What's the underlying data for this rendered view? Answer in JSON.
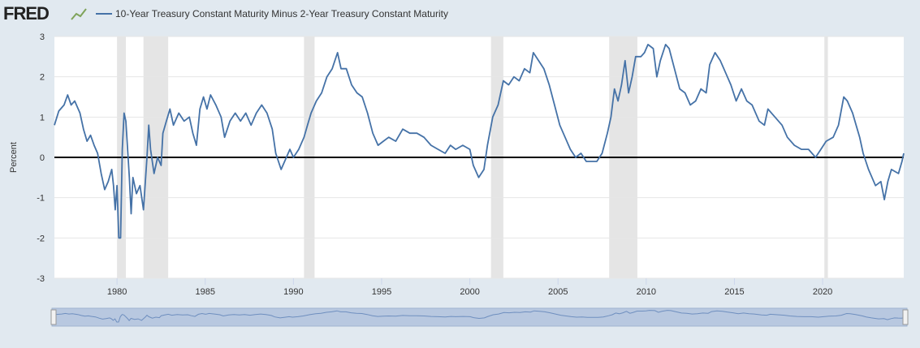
{
  "brand": "FRED",
  "chart_data": {
    "type": "line",
    "ylabel": "Percent",
    "x": [
      1976.45,
      1976.7,
      1977.0,
      1977.2,
      1977.4,
      1977.6,
      1977.9,
      1978.1,
      1978.3,
      1978.5,
      1978.7,
      1978.9,
      1979.1,
      1979.3,
      1979.5,
      1979.7,
      1979.8,
      1979.9,
      1980.0,
      1980.1,
      1980.2,
      1980.3,
      1980.4,
      1980.5,
      1980.7,
      1980.8,
      1980.9,
      1981.1,
      1981.3,
      1981.5,
      1981.7,
      1981.8,
      1981.9,
      1982.1,
      1982.3,
      1982.5,
      1982.6,
      1982.8,
      1983.0,
      1983.2,
      1983.5,
      1983.8,
      1984.1,
      1984.3,
      1984.5,
      1984.7,
      1984.9,
      1985.1,
      1985.3,
      1985.6,
      1985.9,
      1986.1,
      1986.4,
      1986.7,
      1987.0,
      1987.3,
      1987.6,
      1987.9,
      1988.2,
      1988.5,
      1988.8,
      1989.0,
      1989.3,
      1989.6,
      1989.8,
      1990.0,
      1990.3,
      1990.6,
      1990.8,
      1991.0,
      1991.3,
      1991.6,
      1991.9,
      1992.2,
      1992.5,
      1992.7,
      1993.0,
      1993.3,
      1993.6,
      1993.9,
      1994.2,
      1994.5,
      1994.8,
      1995.1,
      1995.4,
      1995.8,
      1996.2,
      1996.6,
      1997.0,
      1997.4,
      1997.8,
      1998.2,
      1998.6,
      1998.9,
      1999.2,
      1999.6,
      2000.0,
      2000.2,
      2000.5,
      2000.8,
      2001.0,
      2001.3,
      2001.6,
      2001.9,
      2002.2,
      2002.5,
      2002.8,
      2003.1,
      2003.4,
      2003.6,
      2003.9,
      2004.2,
      2004.5,
      2004.8,
      2005.1,
      2005.4,
      2005.7,
      2006.0,
      2006.3,
      2006.6,
      2006.9,
      2007.2,
      2007.5,
      2007.8,
      2008.0,
      2008.2,
      2008.4,
      2008.6,
      2008.8,
      2009.0,
      2009.2,
      2009.4,
      2009.7,
      2009.9,
      2010.1,
      2010.4,
      2010.6,
      2010.8,
      2011.1,
      2011.3,
      2011.6,
      2011.9,
      2012.2,
      2012.5,
      2012.8,
      2013.1,
      2013.4,
      2013.6,
      2013.9,
      2014.2,
      2014.5,
      2014.8,
      2015.1,
      2015.4,
      2015.7,
      2016.0,
      2016.4,
      2016.7,
      2016.9,
      2017.3,
      2017.7,
      2018.0,
      2018.4,
      2018.8,
      2019.2,
      2019.6,
      2019.9,
      2020.2,
      2020.6,
      2020.9,
      2021.2,
      2021.4,
      2021.7,
      2021.9,
      2022.1,
      2022.3,
      2022.6,
      2022.8,
      2023.0,
      2023.3,
      2023.5,
      2023.7,
      2023.9,
      2024.1,
      2024.3,
      2024.5,
      2024.6
    ],
    "series": [
      {
        "name": "10-Year Treasury Constant Maturity Minus 2-Year Treasury Constant Maturity",
        "color": "#4572a7",
        "values": [
          0.8,
          1.15,
          1.3,
          1.55,
          1.3,
          1.4,
          1.1,
          0.7,
          0.4,
          0.55,
          0.3,
          0.1,
          -0.4,
          -0.8,
          -0.6,
          -0.3,
          -0.7,
          -1.3,
          -0.7,
          -2.0,
          -2.0,
          0.2,
          1.1,
          0.9,
          -0.5,
          -1.4,
          -0.5,
          -0.9,
          -0.7,
          -1.3,
          0.0,
          0.8,
          0.2,
          -0.4,
          0.0,
          -0.2,
          0.6,
          0.9,
          1.2,
          0.8,
          1.1,
          0.9,
          1.0,
          0.6,
          0.3,
          1.2,
          1.5,
          1.2,
          1.55,
          1.3,
          1.0,
          0.5,
          0.9,
          1.1,
          0.9,
          1.1,
          0.8,
          1.1,
          1.3,
          1.1,
          0.7,
          0.1,
          -0.3,
          0.0,
          0.2,
          0.0,
          0.2,
          0.5,
          0.8,
          1.1,
          1.4,
          1.6,
          2.0,
          2.2,
          2.6,
          2.2,
          2.2,
          1.8,
          1.6,
          1.5,
          1.1,
          0.6,
          0.3,
          0.4,
          0.5,
          0.4,
          0.7,
          0.6,
          0.6,
          0.5,
          0.3,
          0.2,
          0.1,
          0.3,
          0.2,
          0.3,
          0.2,
          -0.2,
          -0.5,
          -0.3,
          0.3,
          1.0,
          1.3,
          1.9,
          1.8,
          2.0,
          1.9,
          2.2,
          2.1,
          2.6,
          2.4,
          2.2,
          1.8,
          1.3,
          0.8,
          0.5,
          0.2,
          0.0,
          0.1,
          -0.1,
          -0.1,
          -0.1,
          0.1,
          0.6,
          1.0,
          1.7,
          1.4,
          1.8,
          2.4,
          1.6,
          2.0,
          2.5,
          2.5,
          2.6,
          2.8,
          2.7,
          2.0,
          2.4,
          2.8,
          2.7,
          2.2,
          1.7,
          1.6,
          1.3,
          1.4,
          1.7,
          1.6,
          2.3,
          2.6,
          2.4,
          2.1,
          1.8,
          1.4,
          1.7,
          1.4,
          1.3,
          0.9,
          0.8,
          1.2,
          1.0,
          0.8,
          0.5,
          0.3,
          0.2,
          0.2,
          0.0,
          0.2,
          0.4,
          0.5,
          0.8,
          1.5,
          1.4,
          1.1,
          0.8,
          0.5,
          0.1,
          -0.3,
          -0.5,
          -0.7,
          -0.6,
          -1.05,
          -0.6,
          -0.3,
          -0.35,
          -0.4,
          -0.1,
          0.1
        ]
      }
    ],
    "shaded_periods": [
      [
        1980.0,
        1980.5
      ],
      [
        1981.5,
        1982.9
      ],
      [
        1990.6,
        1991.2
      ],
      [
        2001.2,
        2001.9
      ],
      [
        2007.9,
        2009.5
      ],
      [
        2020.1,
        2020.3
      ]
    ],
    "shade_color": "#e5e5e5",
    "xlim": [
      1976.45,
      2024.6
    ],
    "xticks": [
      1980,
      1985,
      1990,
      1995,
      2000,
      2005,
      2010,
      2015,
      2020
    ],
    "ylim": [
      -3,
      3
    ],
    "yticks": [
      -3,
      -2,
      -1,
      0,
      1,
      2,
      3
    ],
    "grid": true
  }
}
